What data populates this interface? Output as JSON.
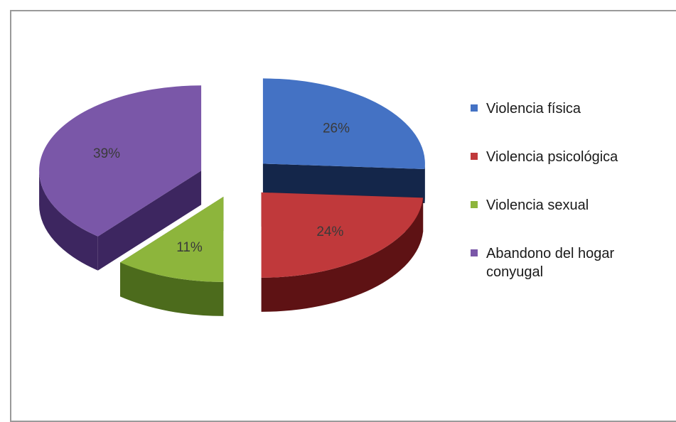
{
  "chart_data": {
    "type": "pie",
    "style": "3d-exploded",
    "title": "",
    "legend_position": "right",
    "series": [
      {
        "name": "Violencia física",
        "value": 26,
        "label": "26%",
        "color": "#4472c4",
        "side_color": "#14264a"
      },
      {
        "name": "Violencia psicológica",
        "value": 24,
        "label": "24%",
        "color": "#c0393b",
        "side_color": "#5e1214"
      },
      {
        "name": "Violencia sexual",
        "value": 11,
        "label": "11%",
        "color": "#8db53c",
        "side_color": "#4c6b1c"
      },
      {
        "name": "Abandono del hogar conyugal",
        "value": 39,
        "label": "39%",
        "color": "#7a57a8",
        "side_color": "#3d2660"
      }
    ]
  }
}
